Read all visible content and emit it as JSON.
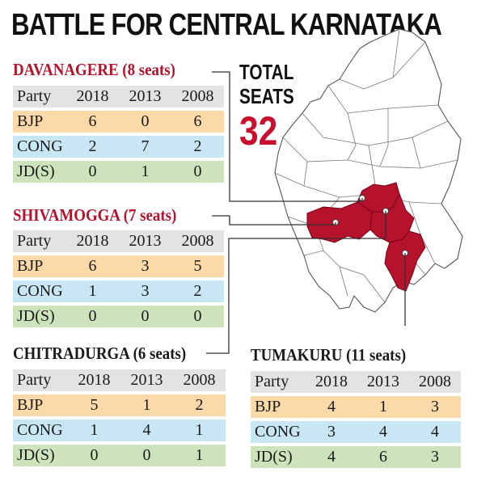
{
  "title": "BATTLE FOR CENTRAL KARNATAKA",
  "total": {
    "label_line1": "TOTAL",
    "label_line2": "SEATS",
    "value": "32"
  },
  "colors": {
    "accent_red": "#c8102e",
    "bjp": "#fbd9a9",
    "cong": "#c8e6f4",
    "jds": "#cde3bc",
    "header": "#e3e3e3"
  },
  "columns": [
    "Party",
    "2018",
    "2013",
    "2008"
  ],
  "districts": {
    "davanagere": {
      "name": "DAVANAGERE (8 seats)",
      "rows": [
        {
          "party": "BJP",
          "y2018": "6",
          "y2013": "0",
          "y2008": "6"
        },
        {
          "party": "CONG",
          "y2018": "2",
          "y2013": "7",
          "y2008": "2"
        },
        {
          "party": "JD(S)",
          "y2018": "0",
          "y2013": "1",
          "y2008": "0"
        }
      ]
    },
    "shivamogga": {
      "name": "SHIVAMOGGA (7 seats)",
      "rows": [
        {
          "party": "BJP",
          "y2018": "6",
          "y2013": "3",
          "y2008": "5"
        },
        {
          "party": "CONG",
          "y2018": "1",
          "y2013": "3",
          "y2008": "2"
        },
        {
          "party": "JD(S)",
          "y2018": "0",
          "y2013": "0",
          "y2008": "0"
        }
      ]
    },
    "chitradurga": {
      "name": "CHITRADURGA (6 seats)",
      "rows": [
        {
          "party": "BJP",
          "y2018": "5",
          "y2013": "1",
          "y2008": "2"
        },
        {
          "party": "CONG",
          "y2018": "1",
          "y2013": "4",
          "y2008": "1"
        },
        {
          "party": "JD(S)",
          "y2018": "0",
          "y2013": "0",
          "y2008": "1"
        }
      ]
    },
    "tumakuru": {
      "name": "TUMAKURU (11 seats)",
      "rows": [
        {
          "party": "BJP",
          "y2018": "4",
          "y2013": "1",
          "y2008": "3"
        },
        {
          "party": "CONG",
          "y2018": "3",
          "y2013": "4",
          "y2008": "4"
        },
        {
          "party": "JD(S)",
          "y2018": "4",
          "y2013": "6",
          "y2008": "3"
        }
      ]
    }
  }
}
